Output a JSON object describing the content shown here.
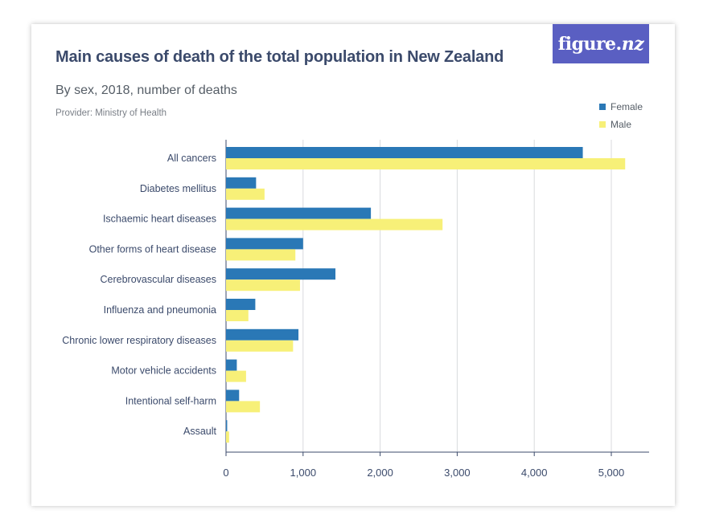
{
  "logo": {
    "main": "figure.",
    "suffix": "nz"
  },
  "colors": {
    "female": "#2a78b6",
    "male": "#f7f078",
    "grid": "#d8dadd",
    "axis": "#3b4a6b",
    "logo_bg": "#5a5fc2"
  },
  "chart_data": {
    "type": "bar",
    "orientation": "horizontal",
    "title": "Main causes of death of the total population in New Zealand",
    "subtitle": "By sex, 2018, number of deaths",
    "provider": "Provider: Ministry of Health",
    "categories": [
      "All cancers",
      "Diabetes mellitus",
      "Ischaemic heart diseases",
      "Other forms of heart disease",
      "Cerebrovascular diseases",
      "Influenza and pneumonia",
      "Chronic lower respiratory diseases",
      "Motor vehicle accidents",
      "Intentional self-harm",
      "Assault"
    ],
    "series": [
      {
        "name": "Female",
        "values": [
          4630,
          390,
          1880,
          1000,
          1420,
          380,
          940,
          140,
          170,
          15
        ]
      },
      {
        "name": "Male",
        "values": [
          5180,
          500,
          2810,
          900,
          960,
          290,
          870,
          260,
          440,
          40
        ]
      }
    ],
    "xlim": [
      0,
      5500
    ],
    "ticks": [
      0,
      1000,
      2000,
      3000,
      4000,
      5000
    ],
    "tick_labels": [
      "0",
      "1,000",
      "2,000",
      "3,000",
      "4,000",
      "5,000"
    ],
    "grid": true,
    "legend_position": "top-right"
  }
}
